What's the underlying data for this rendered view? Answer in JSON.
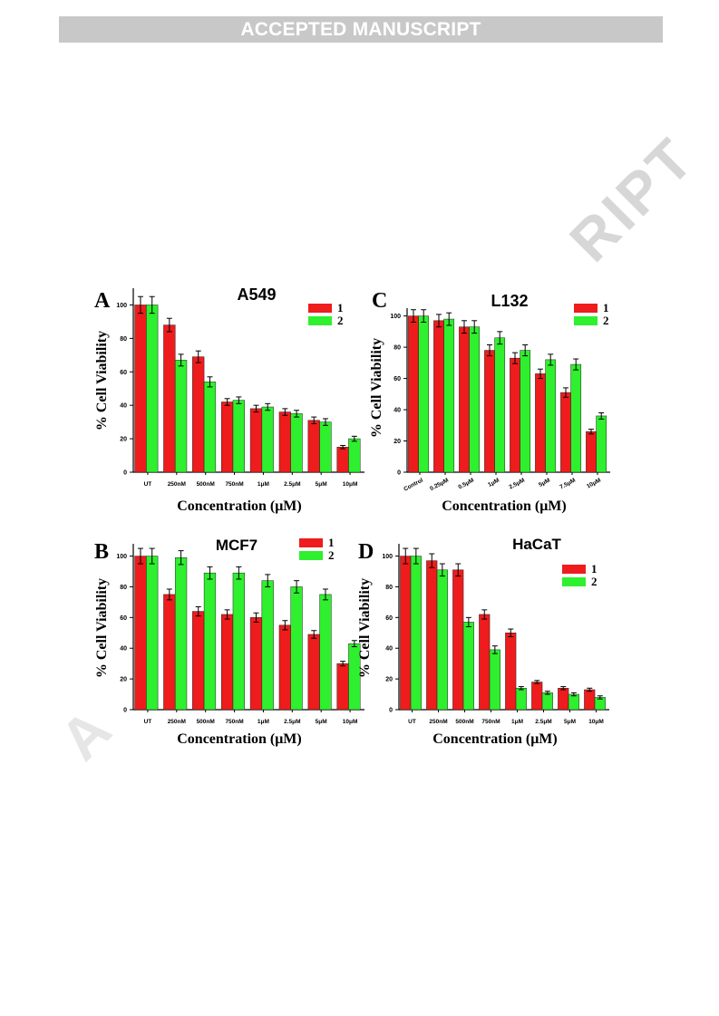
{
  "banner": {
    "text": "ACCEPTED MANUSCRIPT"
  },
  "watermarks": {
    "top": "RIPT",
    "bottom": "A"
  },
  "chart_data": [
    {
      "panel": "A",
      "type": "bar",
      "title": "A549",
      "xlabel": "Concentration (μM)",
      "ylabel": "% Cell Viability",
      "ylim": [
        0,
        110
      ],
      "yticks": [
        0,
        20,
        40,
        60,
        80,
        100
      ],
      "categories": [
        "UT",
        "250nM",
        "500nM",
        "750nM",
        "1μM",
        "2.5μM",
        "5μM",
        "10μM"
      ],
      "rotate_ticks": false,
      "legend_position": "top-right",
      "series": [
        {
          "name": "1",
          "color": "#ee1c1c",
          "values": [
            100,
            88,
            69,
            42,
            38,
            36,
            31,
            15
          ],
          "errors": [
            5,
            4,
            3.5,
            2,
            2,
            2,
            2,
            1
          ]
        },
        {
          "name": "2",
          "color": "#2ef02e",
          "values": [
            100,
            67,
            54,
            43,
            39,
            35,
            30,
            20
          ],
          "errors": [
            5,
            3.5,
            3,
            2,
            2,
            2,
            2,
            1.5
          ]
        }
      ]
    },
    {
      "panel": "C",
      "type": "bar",
      "title": "L132",
      "xlabel": "Concentration (μM)",
      "ylabel": "% Cell Viability",
      "ylim": [
        0,
        105
      ],
      "yticks": [
        0,
        20,
        40,
        60,
        80,
        100
      ],
      "categories": [
        "Control",
        "0.25μM",
        "0.5μM",
        "1μM",
        "2.5μM",
        "5μM",
        "7.5μM",
        "10μM"
      ],
      "rotate_ticks": true,
      "legend_position": "top-right",
      "series": [
        {
          "name": "1",
          "color": "#ee1c1c",
          "values": [
            100,
            97,
            93,
            78,
            73,
            63,
            51,
            26
          ],
          "errors": [
            4,
            4,
            4,
            3.5,
            3.5,
            3,
            3,
            1.5
          ]
        },
        {
          "name": "2",
          "color": "#2ef02e",
          "values": [
            100,
            98,
            93,
            86,
            78,
            72,
            69,
            36
          ],
          "errors": [
            4,
            4,
            4,
            4,
            3.5,
            3.5,
            3.5,
            2
          ]
        }
      ]
    },
    {
      "panel": "B",
      "type": "bar",
      "title": "MCF7",
      "xlabel": "Concentration (μM)",
      "ylabel": "% Cell Viability",
      "ylim": [
        0,
        108
      ],
      "yticks": [
        0,
        20,
        40,
        60,
        80,
        100
      ],
      "categories": [
        "UT",
        "250nM",
        "500nM",
        "750nM",
        "1μM",
        "2.5μM",
        "5μM",
        "10μM"
      ],
      "rotate_ticks": false,
      "legend_position": "top-right",
      "series": [
        {
          "name": "1",
          "color": "#ee1c1c",
          "values": [
            100,
            75,
            64,
            62,
            60,
            55,
            49,
            30
          ],
          "errors": [
            5,
            3.5,
            3,
            3,
            3,
            3,
            2.5,
            1.5
          ]
        },
        {
          "name": "2",
          "color": "#2ef02e",
          "values": [
            100,
            99,
            89,
            89,
            84,
            80,
            75,
            43
          ],
          "errors": [
            5,
            4.5,
            4,
            4,
            4,
            4,
            3.5,
            2
          ]
        }
      ]
    },
    {
      "panel": "D",
      "type": "bar",
      "title": "HaCaT",
      "xlabel": "Concentration (μM)",
      "ylabel": "% Cell Viability",
      "ylim": [
        0,
        108
      ],
      "yticks": [
        0,
        20,
        40,
        60,
        80,
        100
      ],
      "categories": [
        "UT",
        "250nM",
        "500nM",
        "750nM",
        "1μM",
        "2.5μM",
        "5μM",
        "10μM"
      ],
      "rotate_ticks": false,
      "legend_position": "top-right",
      "series": [
        {
          "name": "1",
          "color": "#ee1c1c",
          "values": [
            100,
            97,
            91,
            62,
            50,
            18,
            14,
            13
          ],
          "errors": [
            5,
            4.5,
            4,
            3,
            2.5,
            1,
            1,
            1
          ]
        },
        {
          "name": "2",
          "color": "#2ef02e",
          "values": [
            100,
            91,
            57,
            39,
            14,
            11,
            10,
            8
          ],
          "errors": [
            5,
            4,
            3,
            2.5,
            1,
            1,
            1,
            1
          ]
        }
      ]
    }
  ]
}
